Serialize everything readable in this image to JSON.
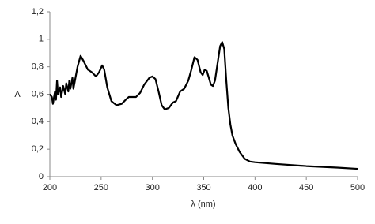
{
  "chart_data": {
    "type": "line",
    "x_label": "λ (nm)",
    "y_label": "A",
    "x": [
      200,
      202,
      203,
      205,
      206,
      207,
      208,
      210,
      211,
      213,
      215,
      216,
      218,
      219,
      220,
      222,
      223,
      225,
      227,
      230,
      233,
      237,
      241,
      245,
      248,
      251,
      253,
      256,
      260,
      265,
      270,
      274,
      277,
      280,
      284,
      288,
      292,
      297,
      300,
      303,
      306,
      309,
      312,
      316,
      320,
      323,
      327,
      331,
      335,
      338,
      341,
      344,
      347,
      349,
      351,
      353,
      355,
      357,
      359,
      361,
      364,
      366,
      368,
      370,
      372,
      374,
      376,
      378,
      381,
      385,
      390,
      395,
      400,
      420,
      450,
      480,
      500
    ],
    "series": [
      {
        "color": "#000000",
        "values": [
          0.6,
          0.58,
          0.53,
          0.62,
          0.56,
          0.7,
          0.6,
          0.65,
          0.58,
          0.66,
          0.6,
          0.68,
          0.62,
          0.7,
          0.64,
          0.72,
          0.64,
          0.72,
          0.8,
          0.88,
          0.84,
          0.78,
          0.76,
          0.73,
          0.76,
          0.81,
          0.78,
          0.65,
          0.55,
          0.52,
          0.53,
          0.56,
          0.58,
          0.58,
          0.58,
          0.61,
          0.67,
          0.72,
          0.73,
          0.71,
          0.62,
          0.52,
          0.49,
          0.5,
          0.54,
          0.55,
          0.62,
          0.64,
          0.7,
          0.78,
          0.87,
          0.85,
          0.76,
          0.74,
          0.78,
          0.77,
          0.72,
          0.67,
          0.66,
          0.7,
          0.85,
          0.95,
          0.98,
          0.93,
          0.7,
          0.5,
          0.38,
          0.3,
          0.24,
          0.18,
          0.13,
          0.11,
          0.105,
          0.093,
          0.077,
          0.066,
          0.057
        ]
      }
    ],
    "xlim": [
      200,
      500
    ],
    "xticks": [
      200,
      250,
      300,
      350,
      400,
      450,
      500
    ],
    "ylim": [
      0,
      1.2
    ],
    "yticks": [
      0,
      {
        "value": 0.2,
        "label": "0,2"
      },
      {
        "value": 0.4,
        "label": "0,4"
      },
      {
        "value": 0.6,
        "label": "0,6"
      },
      {
        "value": 0.8,
        "label": "0,8"
      },
      1,
      {
        "value": 1.2,
        "label": "1,2"
      }
    ]
  }
}
